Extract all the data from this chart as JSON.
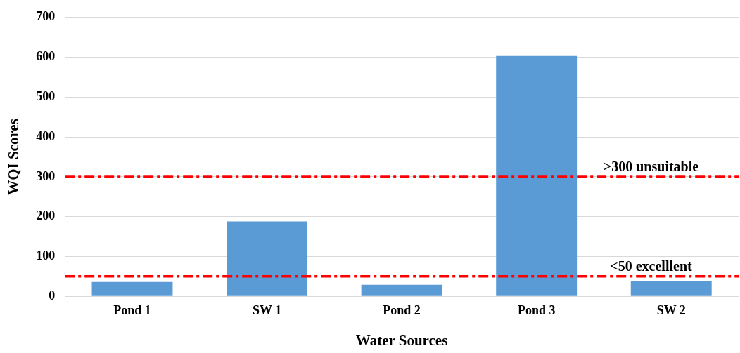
{
  "chart_data": {
    "type": "bar",
    "xlabel": "Water Sources",
    "ylabel": "WQI Scores",
    "categories": [
      "Pond 1",
      "SW 1",
      "Pond 2",
      "Pond 3",
      "SW 2"
    ],
    "values": [
      36,
      188,
      29,
      603,
      38
    ],
    "color": "#5b9bd5",
    "ylim": [
      0,
      700
    ],
    "yticks": [
      0,
      100,
      200,
      300,
      400,
      500,
      600,
      700
    ],
    "grid": "y",
    "legend": false,
    "ref_lines": [
      {
        "axis": "y",
        "value": 300,
        "label": ">300 unsuitable",
        "color": "#ff0000",
        "line_style": "dashed"
      },
      {
        "axis": "y",
        "value": 50,
        "label": "<50 excelllent",
        "color": "#ff0000",
        "line_style": "dashed"
      }
    ]
  }
}
